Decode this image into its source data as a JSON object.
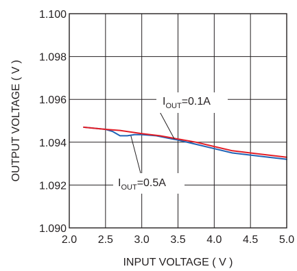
{
  "chart_data": {
    "type": "line",
    "xlabel": "INPUT VOLTAGE ( V )",
    "ylabel": "OUTPUT VOLTAGE ( V )",
    "xlim": [
      2.0,
      5.0
    ],
    "ylim": [
      1.09,
      1.1
    ],
    "x_ticks": [
      2.0,
      2.5,
      3.0,
      3.5,
      4.0,
      4.5,
      5.0
    ],
    "x_tick_labels": [
      "2.0",
      "2.5",
      "3.0",
      "3.5",
      "4.0",
      "4.5",
      "5.0"
    ],
    "y_ticks": [
      1.09,
      1.092,
      1.094,
      1.096,
      1.098,
      1.1
    ],
    "y_tick_labels": [
      "1.090",
      "1.092",
      "1.094",
      "1.096",
      "1.098",
      "1.100"
    ],
    "grid": true,
    "series": [
      {
        "name": "IOUT=0.1A",
        "color": "#e21d26",
        "x": [
          2.2,
          2.5,
          2.7,
          3.0,
          3.25,
          3.5,
          3.75,
          4.0,
          4.25,
          4.5,
          4.75,
          5.0
        ],
        "y": [
          1.0947,
          1.0946,
          1.09455,
          1.0944,
          1.0943,
          1.09415,
          1.094,
          1.0938,
          1.0936,
          1.0935,
          1.0934,
          1.0933
        ]
      },
      {
        "name": "IOUT=0.5A",
        "color": "#1f63b5",
        "x": [
          2.2,
          2.5,
          2.6,
          2.7,
          2.8,
          2.9,
          3.0,
          3.2,
          3.5,
          3.75,
          4.0,
          4.25,
          4.5,
          4.75,
          5.0
        ],
        "y": [
          1.0947,
          1.0946,
          1.0945,
          1.0943,
          1.0943,
          1.09435,
          1.09435,
          1.0943,
          1.0941,
          1.0939,
          1.0937,
          1.0935,
          1.0934,
          1.0933,
          1.0932
        ]
      }
    ],
    "annotations": [
      {
        "id": "ann-01",
        "prefix": "I",
        "sub": "OUT",
        "suffix": "=0.1A",
        "series": 0
      },
      {
        "id": "ann-05",
        "prefix": "I",
        "sub": "OUT",
        "suffix": "=0.5A",
        "series": 1
      }
    ]
  }
}
